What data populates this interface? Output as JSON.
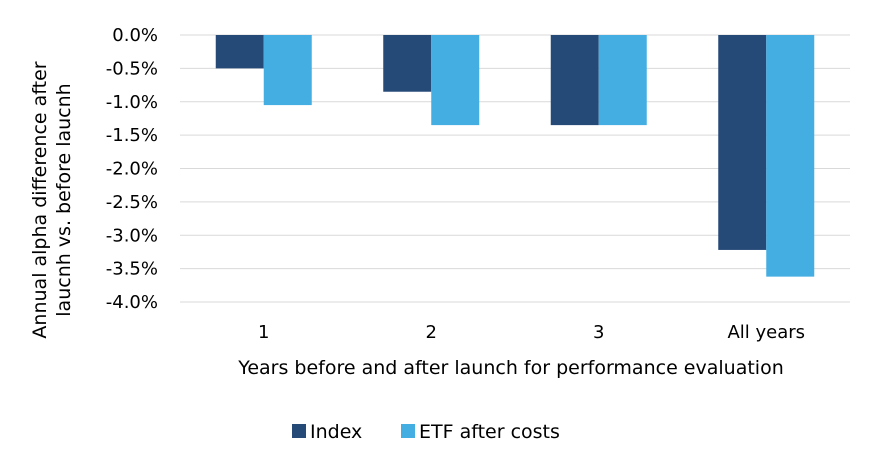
{
  "chart_data": {
    "type": "bar",
    "categories": [
      "1",
      "2",
      "3",
      "All years"
    ],
    "series": [
      {
        "name": "Index",
        "color": "#264a78",
        "values": [
          -0.5,
          -0.85,
          -1.35,
          -3.22
        ]
      },
      {
        "name": "ETF after costs",
        "color": "#44ade2",
        "values": [
          -1.05,
          -1.35,
          -1.35,
          -3.62
        ]
      }
    ],
    "xlabel": "Years before and after launch for performance evaluation",
    "ylabel_lines": [
      "Annual alpha difference after",
      "laucnh vs. before laucnh"
    ],
    "ylim": [
      -4.0,
      0.0
    ],
    "ytick_step": 0.5,
    "yticks": [
      "0.0%",
      "-0.5%",
      "-1.0%",
      "-1.5%",
      "-2.0%",
      "-2.5%",
      "-3.0%",
      "-3.5%",
      "-4.0%"
    ],
    "grid": true,
    "legend_position": "bottom-center"
  }
}
